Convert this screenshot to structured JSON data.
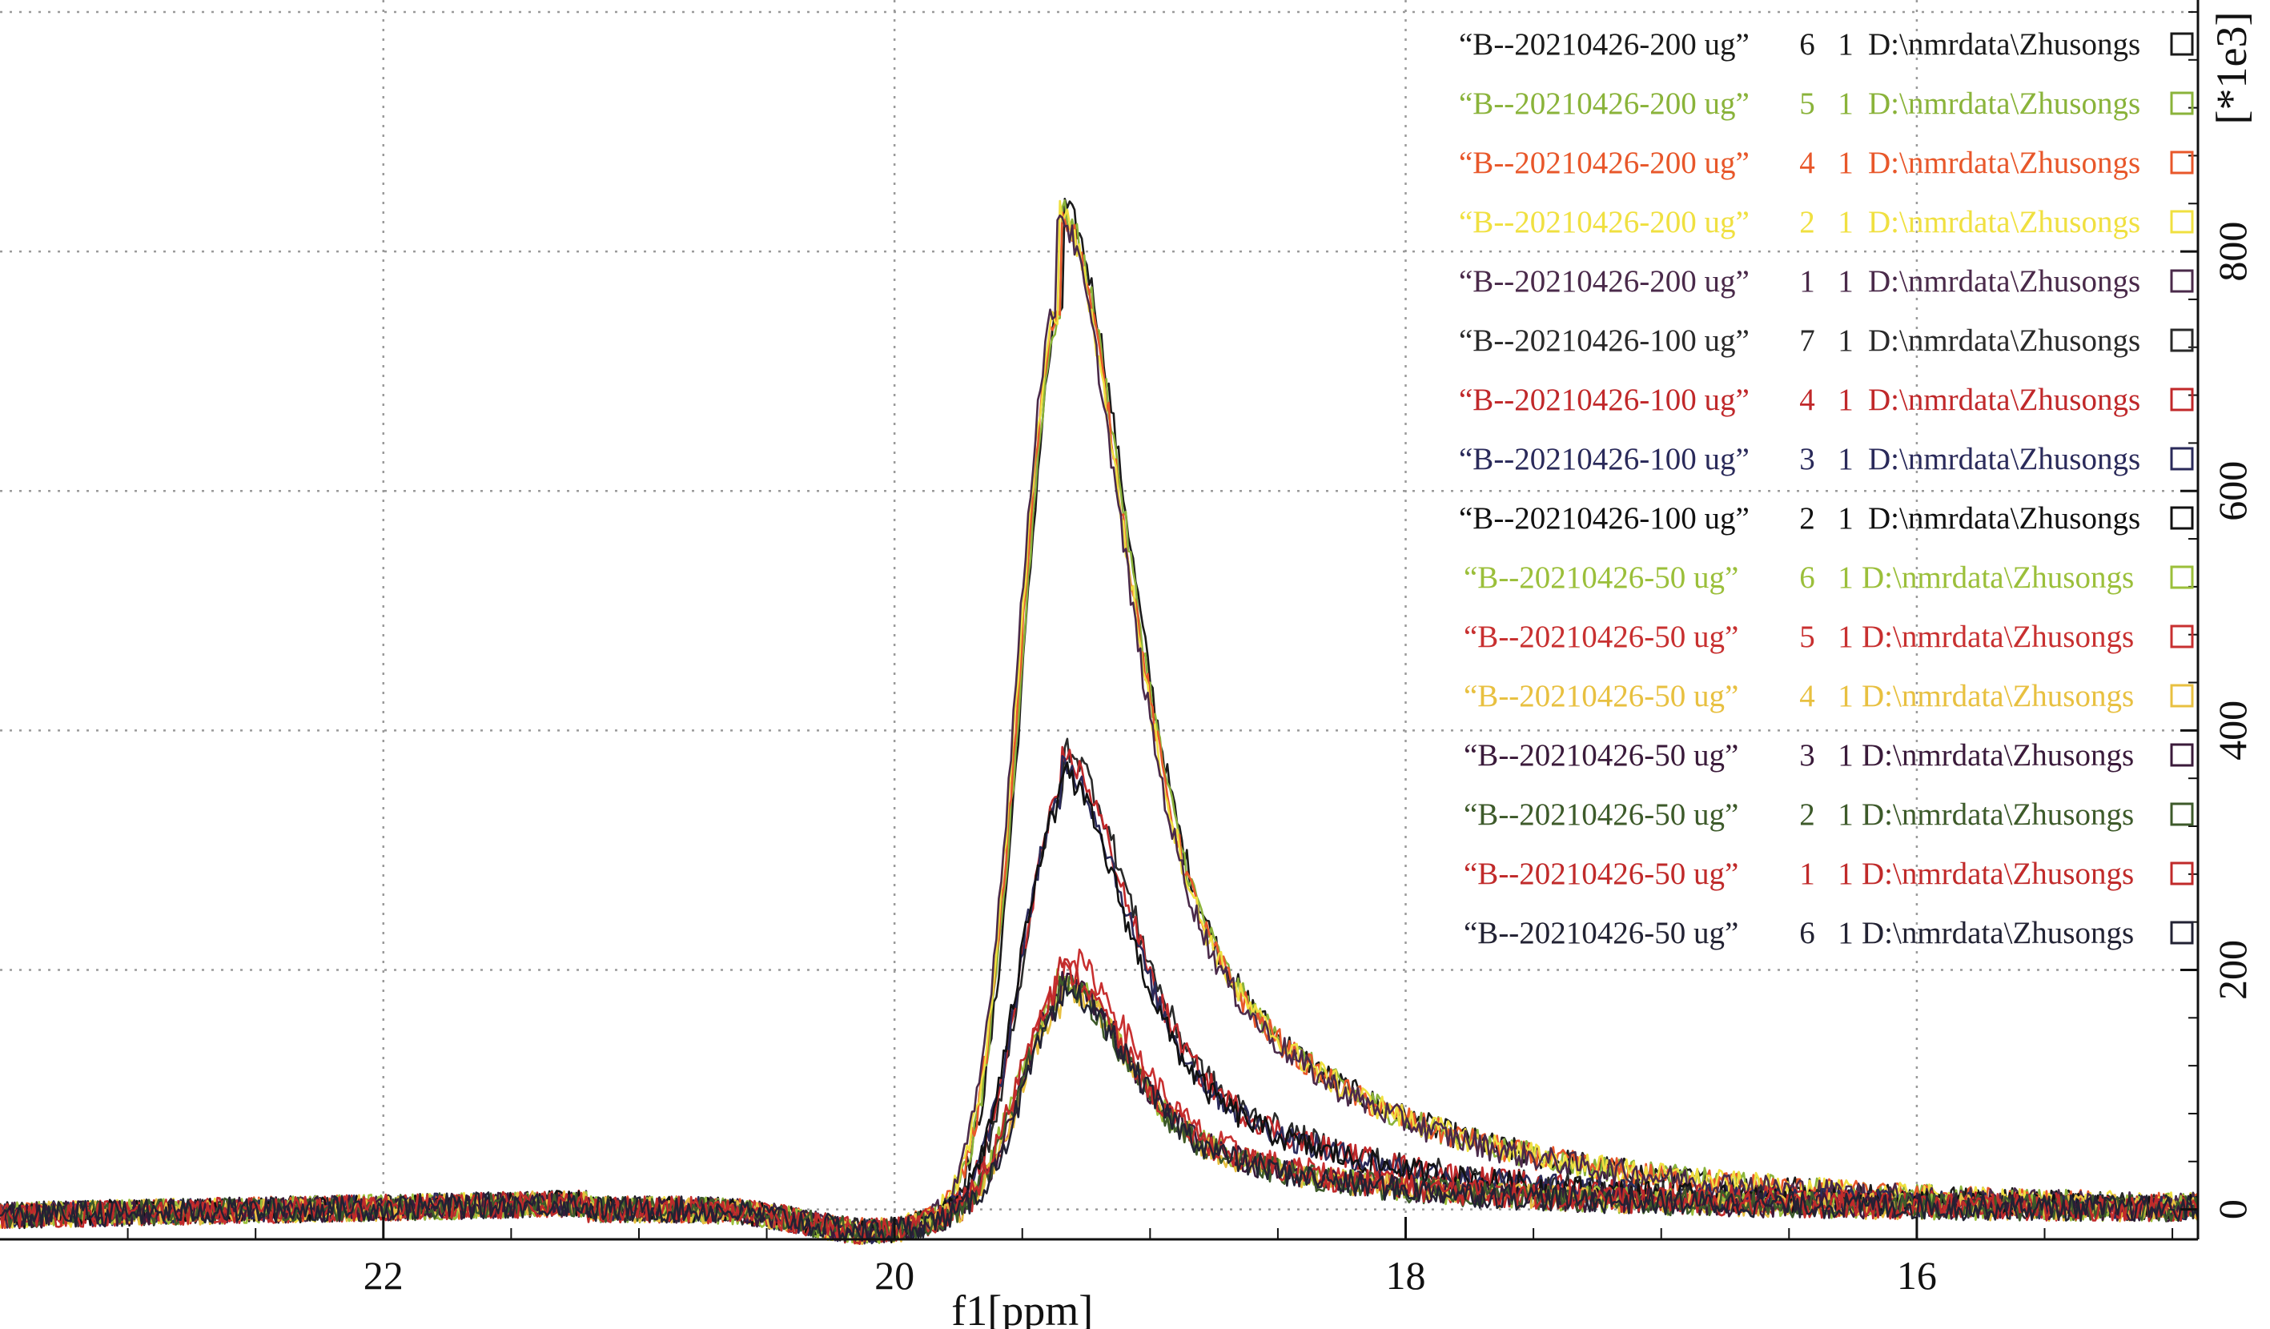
{
  "chart_data": {
    "type": "line",
    "xlabel": "f1[ppm]",
    "ylabel": "[*1e3]",
    "xlim": [
      23.5,
      14.9
    ],
    "ylim": [
      -25,
      1010
    ],
    "x_reversed": true,
    "grid": true,
    "legend_position": "top-right",
    "x_ticks": [
      22,
      20,
      18,
      16
    ],
    "x_tick_labels": [
      "22",
      "20",
      "18",
      "16"
    ],
    "y_ticks": [
      0,
      200,
      400,
      600,
      800
    ],
    "y_tick_labels": [
      "0",
      "200",
      "400",
      "600",
      "800"
    ],
    "peak_position_ppm": 19.34,
    "series": [
      {
        "name": "“B--20210426-200 ug”",
        "expno": "6",
        "procno": "1",
        "path": "D:\\nmrdata\\Zhusongs",
        "color": "#1a1a1a",
        "peak": 755,
        "tail": 110
      },
      {
        "name": "“B--20210426-200 ug”",
        "expno": "5",
        "procno": "1",
        "path": "D:\\nmrdata\\Zhusongs",
        "color": "#8ab33a",
        "peak": 750,
        "tail": 112
      },
      {
        "name": "“B--20210426-200 ug”",
        "expno": "4",
        "procno": "1",
        "path": "D:\\nmrdata\\Zhusongs",
        "color": "#e8572a",
        "peak": 752,
        "tail": 108
      },
      {
        "name": "“B--20210426-200 ug”",
        "expno": "2",
        "procno": "1",
        "path": "D:\\nmrdata\\Zhusongs",
        "color": "#f0e040",
        "peak": 748,
        "tail": 115
      },
      {
        "name": "“B--20210426-200 ug”",
        "expno": "1",
        "procno": "1",
        "path": "D:\\nmrdata\\Zhusongs",
        "color": "#4a2a4a",
        "peak": 753,
        "tail": 106
      },
      {
        "name": "“B--20210426-100 ug”",
        "expno": "7",
        "procno": "1",
        "path": "D:\\nmrdata\\Zhusongs",
        "color": "#2a2a2a",
        "peak": 345,
        "tail": 55
      },
      {
        "name": "“B--20210426-100 ug”",
        "expno": "4",
        "procno": "1",
        "path": "D:\\nmrdata\\Zhusongs",
        "color": "#c0282a",
        "peak": 340,
        "tail": 52
      },
      {
        "name": "“B--20210426-100 ug”",
        "expno": "3",
        "procno": "1",
        "path": "D:\\nmrdata\\Zhusongs",
        "color": "#2a2a5a",
        "peak": 335,
        "tail": 50
      },
      {
        "name": "“B--20210426-100 ug”",
        "expno": "2",
        "procno": "1",
        "path": "D:\\nmrdata\\Zhusongs",
        "color": "#111111",
        "peak": 330,
        "tail": 48
      },
      {
        "name": "“B--20210426-50 ug”",
        "expno": "6",
        "procno": "1",
        "path": "D:\\nmrdata\\Zhusongs",
        "color": "#9bbf3a",
        "peak": 175,
        "tail": 28
      },
      {
        "name": "“B--20210426-50 ug”",
        "expno": "5",
        "procno": "1",
        "path": "D:\\nmrdata\\Zhusongs",
        "color": "#c83030",
        "peak": 190,
        "tail": 30
      },
      {
        "name": "“B--20210426-50 ug”",
        "expno": "4",
        "procno": "1",
        "path": "D:\\nmrdata\\Zhusongs",
        "color": "#e8c040",
        "peak": 168,
        "tail": 26
      },
      {
        "name": "“B--20210426-50 ug”",
        "expno": "3",
        "procno": "1",
        "path": "D:\\nmrdata\\Zhusongs",
        "color": "#3a1a3a",
        "peak": 172,
        "tail": 27
      },
      {
        "name": "“B--20210426-50 ug”",
        "expno": "2",
        "procno": "1",
        "path": "D:\\nmrdata\\Zhusongs",
        "color": "#3d5a2a",
        "peak": 170,
        "tail": 25
      },
      {
        "name": "“B--20210426-50 ug”",
        "expno": "1",
        "procno": "1",
        "path": "D:\\nmrdata\\Zhusongs",
        "color": "#c02a2a",
        "peak": 180,
        "tail": 29
      },
      {
        "name": "“B--20210426-50 ug”",
        "expno": "6",
        "procno": "1",
        "path": "D:\\nmrdata\\Zhusongs",
        "color": "#222233",
        "peak": 165,
        "tail": 24
      }
    ]
  }
}
